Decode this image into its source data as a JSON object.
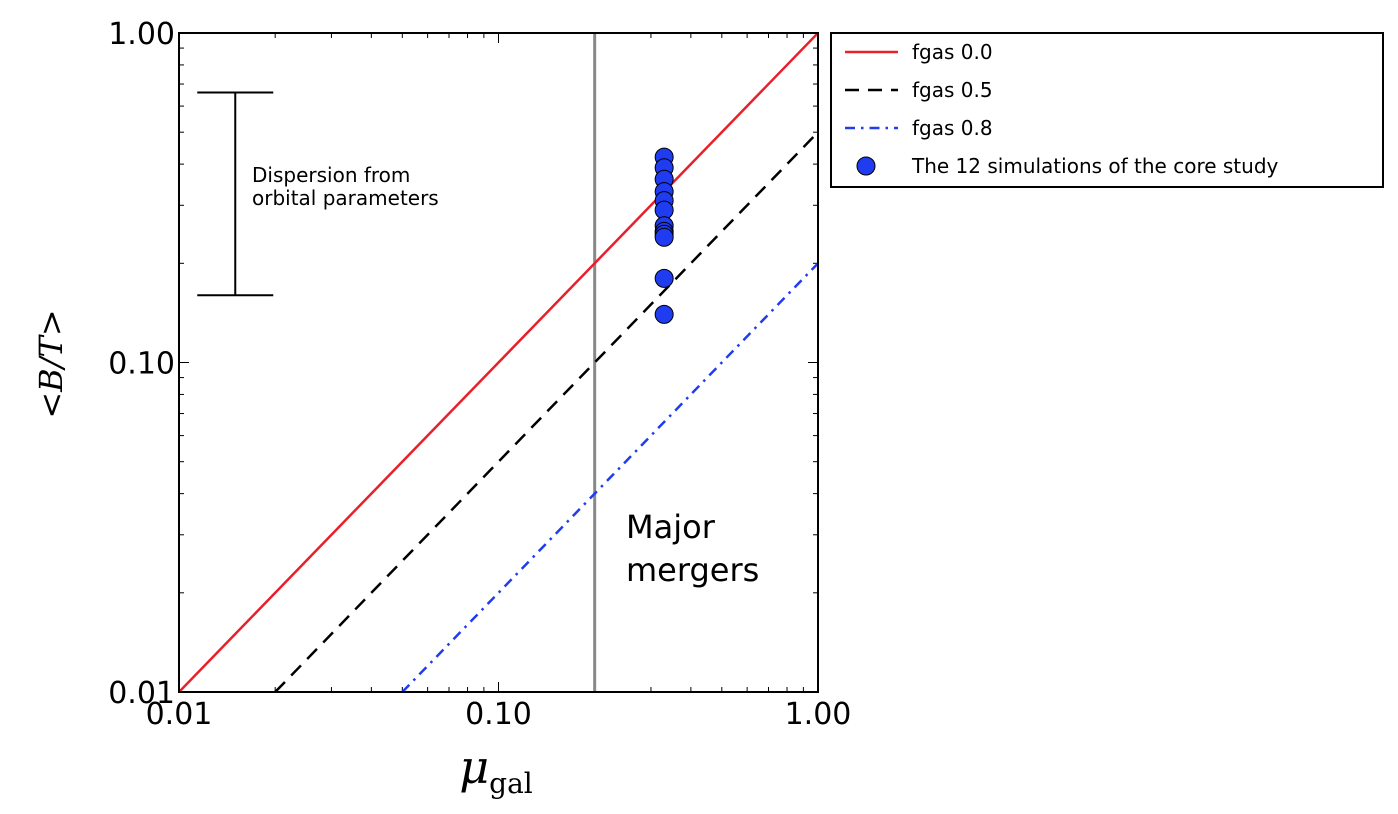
{
  "chart_data": {
    "type": "line",
    "x_scale": "log",
    "y_scale": "log",
    "xlim": [
      0.01,
      1.0
    ],
    "ylim": [
      0.01,
      1.0
    ],
    "xlabel": {
      "main": "μ",
      "sub": "gal"
    },
    "ylabel": "<B/T>",
    "x_tick_labels": [
      {
        "value": 0.01,
        "label": "0.01"
      },
      {
        "value": 0.1,
        "label": "0.10"
      },
      {
        "value": 1.0,
        "label": "1.00"
      }
    ],
    "y_tick_labels": [
      {
        "value": 0.01,
        "label": "0.01"
      },
      {
        "value": 0.1,
        "label": "0.10"
      },
      {
        "value": 1.0,
        "label": "1.00"
      }
    ],
    "series": [
      {
        "name": "fgas 0.0",
        "style": "solid",
        "color": "#e8202a",
        "x": [
          0.01,
          1.0
        ],
        "y": [
          0.01,
          1.0
        ]
      },
      {
        "name": "fgas 0.5",
        "style": "dashed",
        "color": "#000000",
        "x": [
          0.02,
          1.0
        ],
        "y": [
          0.01,
          0.5
        ]
      },
      {
        "name": "fgas 0.8",
        "style": "dashdot",
        "color": "#1f3cf0",
        "x": [
          0.05,
          1.0
        ],
        "y": [
          0.01,
          0.2
        ]
      }
    ],
    "scatter": {
      "name": "The 12 simulations of the core study",
      "color": "#1f3cf0",
      "x": [
        0.33,
        0.33,
        0.33,
        0.33,
        0.33,
        0.33,
        0.33,
        0.33,
        0.33,
        0.33,
        0.33,
        0.33
      ],
      "y": [
        0.42,
        0.39,
        0.36,
        0.33,
        0.31,
        0.29,
        0.26,
        0.25,
        0.245,
        0.24,
        0.18,
        0.14
      ]
    },
    "vline": {
      "x": 0.2,
      "color": "#888888"
    },
    "error_bar": {
      "x": 0.015,
      "y_low": 0.16,
      "y_high": 0.66
    },
    "annotations": {
      "dispersion_line1": "Dispersion from",
      "dispersion_line2": "orbital parameters",
      "major_line1": "Major",
      "major_line2": "mergers"
    },
    "legend_position": "outside-top-right"
  }
}
